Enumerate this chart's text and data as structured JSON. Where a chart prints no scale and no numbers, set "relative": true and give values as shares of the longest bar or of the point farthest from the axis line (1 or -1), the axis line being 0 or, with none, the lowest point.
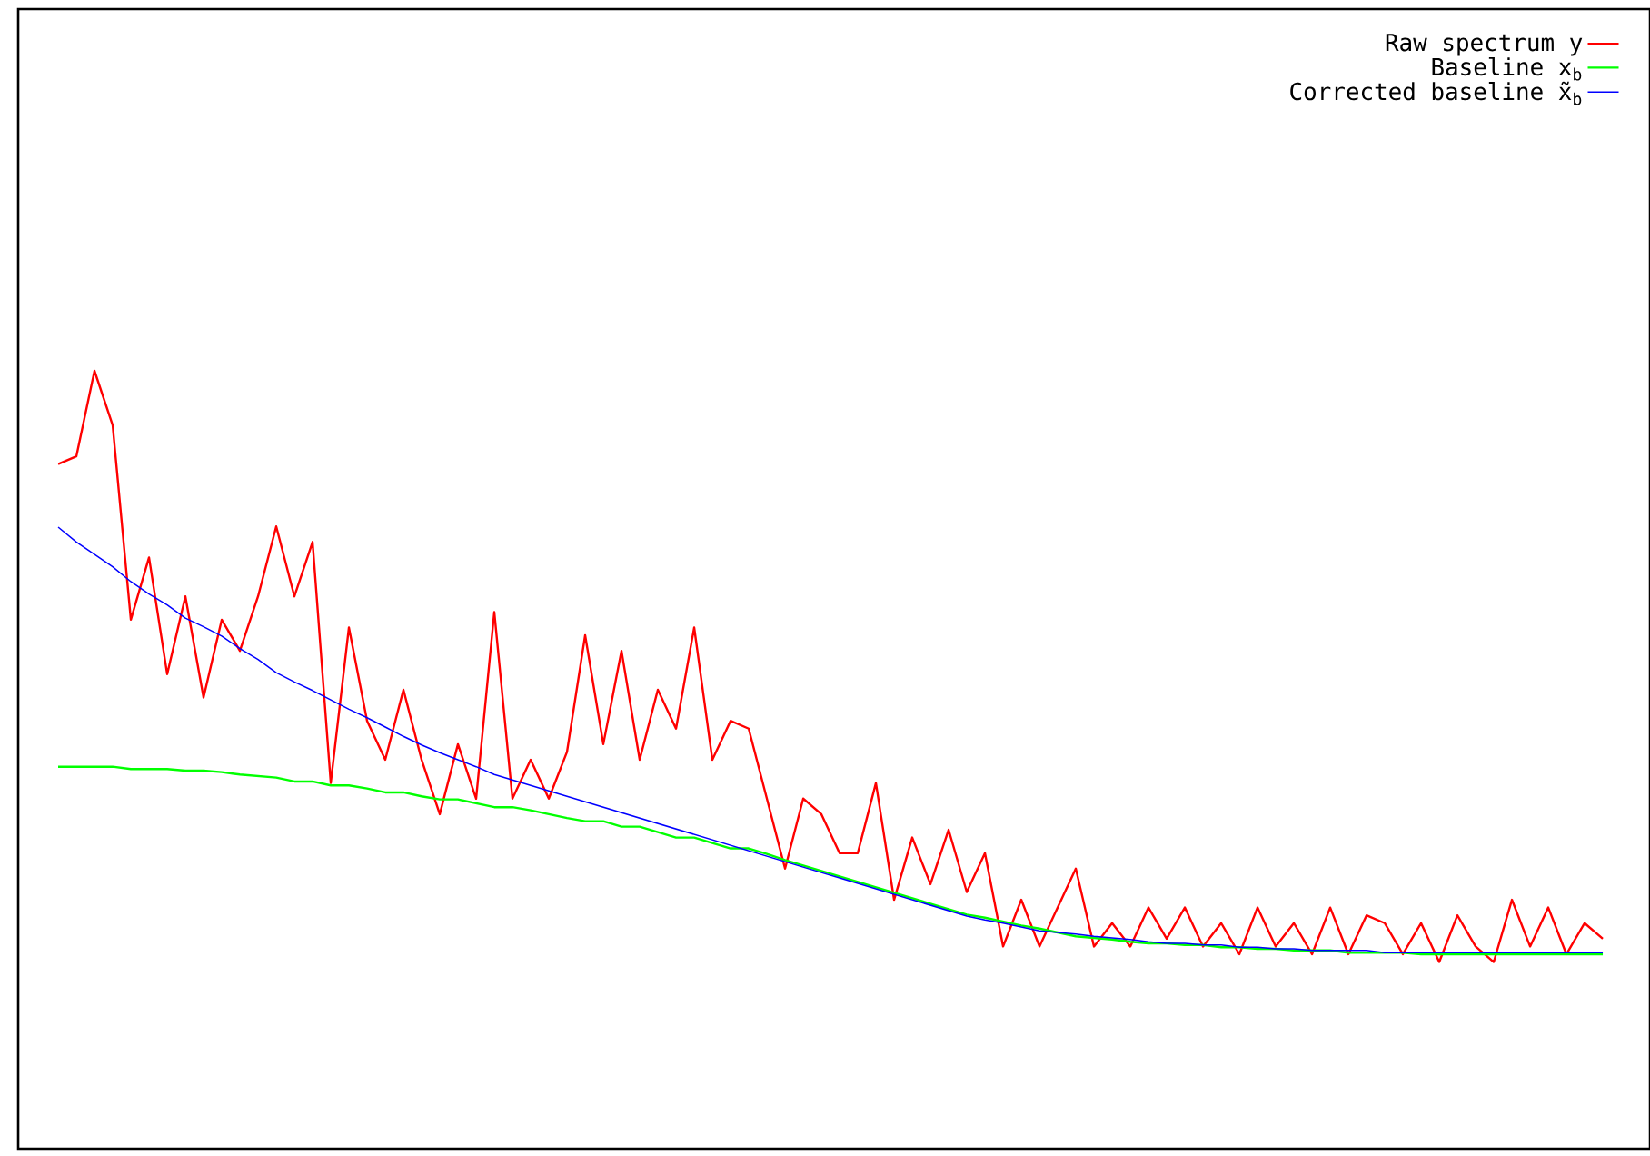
{
  "chart_data": {
    "type": "line",
    "relative": true,
    "legend": "top right",
    "categories": [
      null,
      null,
      null,
      null,
      null,
      null,
      null,
      null,
      null,
      null,
      null,
      null,
      null,
      null,
      null,
      null,
      null,
      null,
      null,
      null,
      null,
      null,
      null,
      null,
      null,
      null,
      null,
      null,
      null,
      null,
      null,
      null,
      null,
      null,
      null,
      null,
      null,
      null,
      null,
      null,
      null,
      null,
      null,
      null,
      null,
      null,
      null,
      null,
      null,
      null,
      null,
      null,
      null,
      null,
      null,
      null,
      null,
      null,
      null,
      null,
      null,
      null,
      null,
      null,
      null,
      null,
      null,
      null,
      null,
      null,
      null,
      null,
      null,
      null,
      null,
      null,
      null,
      null,
      null,
      null,
      null,
      null,
      null,
      null,
      null,
      null
    ],
    "series": [
      {
        "name": "Raw spectrum y",
        "color": "#ff0000",
        "values": [
          0.88,
          0.89,
          1.0,
          0.93,
          0.68,
          0.76,
          0.61,
          0.71,
          0.58,
          0.68,
          0.64,
          0.71,
          0.8,
          0.71,
          0.78,
          0.47,
          0.67,
          0.55,
          0.5,
          0.59,
          0.5,
          0.43,
          0.52,
          0.45,
          0.69,
          0.45,
          0.5,
          0.45,
          0.51,
          0.66,
          0.52,
          0.64,
          0.5,
          0.59,
          0.54,
          0.67,
          0.5,
          0.55,
          0.54,
          0.45,
          0.36,
          0.45,
          0.43,
          0.38,
          0.38,
          0.47,
          0.32,
          0.4,
          0.34,
          0.41,
          0.33,
          0.38,
          0.26,
          0.32,
          0.26,
          0.31,
          0.36,
          0.26,
          0.29,
          0.26,
          0.31,
          0.27,
          0.31,
          0.26,
          0.29,
          0.25,
          0.31,
          0.26,
          0.29,
          0.25,
          0.31,
          0.25,
          0.3,
          0.29,
          0.25,
          0.29,
          0.24,
          0.3,
          0.26,
          0.24,
          0.32,
          0.26,
          0.31,
          0.25,
          0.29,
          0.27
        ]
      },
      {
        "name": "Baseline x$_{b}$",
        "color": "#00ff00",
        "values": [
          0.491,
          0.491,
          0.491,
          0.491,
          0.488,
          0.488,
          0.488,
          0.486,
          0.486,
          0.484,
          0.481,
          0.479,
          0.477,
          0.472,
          0.472,
          0.467,
          0.467,
          0.463,
          0.458,
          0.458,
          0.453,
          0.449,
          0.449,
          0.444,
          0.439,
          0.439,
          0.435,
          0.43,
          0.425,
          0.421,
          0.421,
          0.414,
          0.414,
          0.407,
          0.4,
          0.4,
          0.393,
          0.386,
          0.386,
          0.379,
          0.371,
          0.364,
          0.357,
          0.35,
          0.343,
          0.336,
          0.329,
          0.322,
          0.315,
          0.308,
          0.301,
          0.297,
          0.292,
          0.287,
          0.283,
          0.278,
          0.273,
          0.271,
          0.269,
          0.266,
          0.264,
          0.264,
          0.262,
          0.262,
          0.259,
          0.259,
          0.257,
          0.257,
          0.255,
          0.255,
          0.255,
          0.252,
          0.252,
          0.252,
          0.252,
          0.25,
          0.25,
          0.25,
          0.25,
          0.25,
          0.25,
          0.25,
          0.25,
          0.25,
          0.25,
          0.25
        ]
      },
      {
        "name": "Corrected baseline x̃$_{b}$",
        "color": "#0000ff",
        "values": [
          0.799,
          0.78,
          0.764,
          0.748,
          0.729,
          0.713,
          0.699,
          0.682,
          0.671,
          0.659,
          0.643,
          0.629,
          0.612,
          0.6,
          0.589,
          0.577,
          0.565,
          0.554,
          0.542,
          0.53,
          0.519,
          0.509,
          0.5,
          0.491,
          0.481,
          0.474,
          0.467,
          0.46,
          0.453,
          0.446,
          0.439,
          0.432,
          0.425,
          0.418,
          0.411,
          0.404,
          0.397,
          0.39,
          0.383,
          0.376,
          0.369,
          0.362,
          0.355,
          0.348,
          0.341,
          0.334,
          0.327,
          0.32,
          0.313,
          0.306,
          0.299,
          0.294,
          0.29,
          0.285,
          0.28,
          0.278,
          0.276,
          0.273,
          0.271,
          0.269,
          0.266,
          0.264,
          0.264,
          0.262,
          0.262,
          0.259,
          0.259,
          0.257,
          0.257,
          0.255,
          0.255,
          0.255,
          0.255,
          0.252,
          0.252,
          0.252,
          0.252,
          0.252,
          0.252,
          0.252,
          0.252,
          0.252,
          0.252,
          0.252,
          0.252,
          0.252
        ]
      }
    ]
  }
}
